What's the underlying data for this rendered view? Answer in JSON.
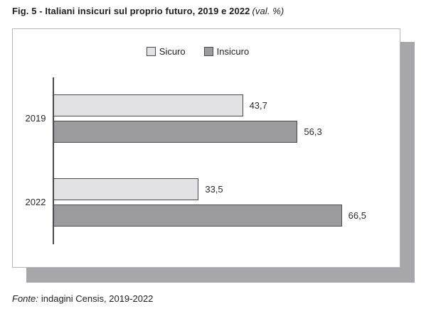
{
  "title": {
    "main": "Fig. 5 - Italiani insicuri sul proprio futuro, 2019 e 2022",
    "unit_note": "(val. %)"
  },
  "legend": [
    {
      "label": "Sicuro",
      "color": "#e2e2e4"
    },
    {
      "label": "Insicuro",
      "color": "#9b9b9f"
    }
  ],
  "source": {
    "prefix": "Fonte:",
    "text": "indagini Censis, 2019-2022"
  },
  "colors": {
    "sicuro_fill": "#e2e2e4",
    "insicuro_fill": "#9b9b9f",
    "bar_border": "#4a4a4c",
    "box_border": "#b5b5b7",
    "shadow": "#a7a7ab"
  },
  "chart_data": {
    "type": "bar",
    "orientation": "horizontal",
    "title": "Fig. 5 - Italiani insicuri sul proprio futuro, 2019 e 2022 (val. %)",
    "categories": [
      "2019",
      "2022"
    ],
    "series": [
      {
        "name": "Sicuro",
        "values": [
          43.7,
          33.5
        ],
        "labels": [
          "43,7",
          "33,5"
        ],
        "color": "#e2e2e4"
      },
      {
        "name": "Insicuro",
        "values": [
          56.3,
          66.5
        ],
        "labels": [
          "56,3",
          "66,5"
        ],
        "color": "#9b9b9f"
      }
    ],
    "xlabel": "",
    "ylabel": "",
    "xlim": [
      0,
      80
    ],
    "grid": false,
    "legend_position": "top-center",
    "value_labels_shown": true
  }
}
